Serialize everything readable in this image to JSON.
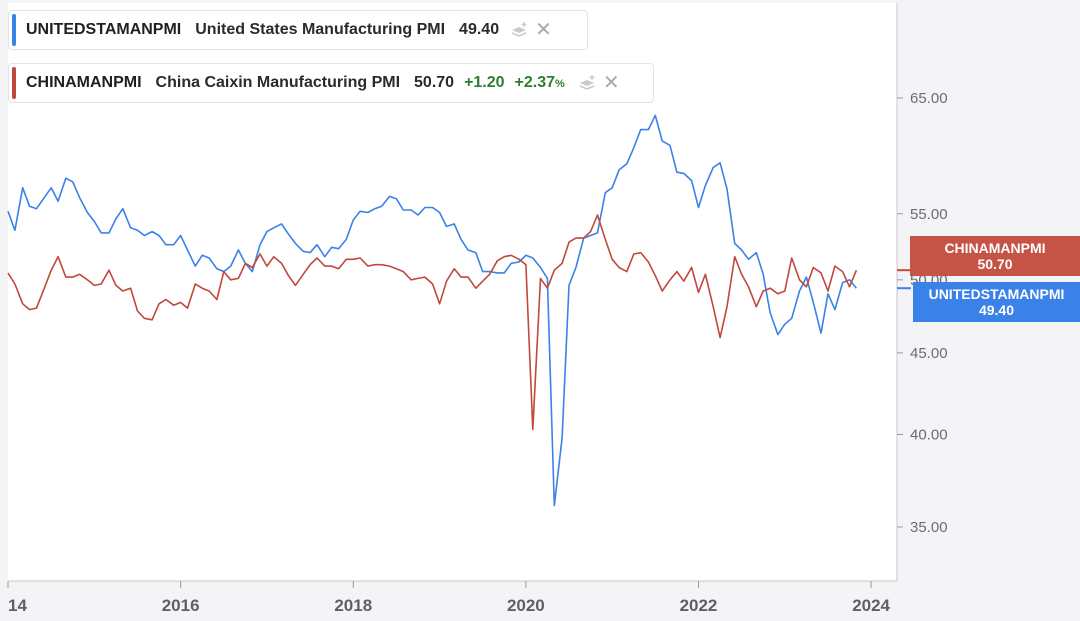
{
  "legend": [
    {
      "symbol": "UNITEDSTAMANPMI",
      "name": "United States Manufacturing PMI",
      "value": "49.40",
      "change": "",
      "change_pct": "",
      "color": "#3b82e8"
    },
    {
      "symbol": "CHINAMANPMI",
      "name": "China Caixin Manufacturing PMI",
      "value": "50.70",
      "change": "+1.20",
      "change_pct": "+2.37",
      "pct_suffix": "%",
      "color": "#c0483c"
    }
  ],
  "price_tags": {
    "china": {
      "label": "CHINAMANPMI",
      "value": "50.70",
      "color": "#c65446"
    },
    "us": {
      "label": "UNITEDSTAMANPMI",
      "value": "49.40",
      "color": "#3b82e8"
    }
  },
  "chart_data": {
    "type": "line",
    "title": "",
    "xlabel": "",
    "ylabel": "",
    "x_tick_labels": [
      "14",
      "2016",
      "2018",
      "2020",
      "2022",
      "2024"
    ],
    "x_tick_years": [
      2014.0,
      2016.0,
      2018.0,
      2020.0,
      2022.0,
      2024.0
    ],
    "y_tick_labels": [
      "65.00",
      "55.00",
      "50.00",
      "45.00",
      "40.00",
      "35.00"
    ],
    "y_ticks": [
      65,
      55,
      50,
      45,
      40,
      35
    ],
    "xlim": [
      2014.0,
      2024.3
    ],
    "ylim": [
      32,
      72
    ],
    "y_scale": "log",
    "grid": false,
    "series": [
      {
        "name": "UNITEDSTAMANPMI",
        "color": "#3b82e8",
        "points": [
          [
            2014.0,
            55.2
          ],
          [
            2014.08,
            53.7
          ],
          [
            2014.17,
            57.1
          ],
          [
            2014.25,
            55.6
          ],
          [
            2014.33,
            55.4
          ],
          [
            2014.42,
            56.3
          ],
          [
            2014.5,
            57.1
          ],
          [
            2014.58,
            56.0
          ],
          [
            2014.67,
            57.9
          ],
          [
            2014.75,
            57.6
          ],
          [
            2014.83,
            56.3
          ],
          [
            2014.92,
            55.1
          ],
          [
            2015.0,
            54.4
          ],
          [
            2015.08,
            53.5
          ],
          [
            2015.17,
            53.5
          ],
          [
            2015.25,
            54.6
          ],
          [
            2015.33,
            55.4
          ],
          [
            2015.42,
            53.9
          ],
          [
            2015.5,
            53.7
          ],
          [
            2015.58,
            53.3
          ],
          [
            2015.67,
            53.6
          ],
          [
            2015.75,
            53.3
          ],
          [
            2015.83,
            52.6
          ],
          [
            2015.92,
            52.6
          ],
          [
            2016.0,
            53.3
          ],
          [
            2016.08,
            52.2
          ],
          [
            2016.17,
            51.0
          ],
          [
            2016.25,
            51.8
          ],
          [
            2016.33,
            51.6
          ],
          [
            2016.42,
            50.8
          ],
          [
            2016.5,
            50.6
          ],
          [
            2016.58,
            51.0
          ],
          [
            2016.67,
            52.2
          ],
          [
            2016.75,
            51.2
          ],
          [
            2016.83,
            50.6
          ],
          [
            2016.92,
            52.6
          ],
          [
            2017.0,
            53.6
          ],
          [
            2017.08,
            53.9
          ],
          [
            2017.17,
            54.2
          ],
          [
            2017.25,
            53.4
          ],
          [
            2017.33,
            52.7
          ],
          [
            2017.42,
            52.1
          ],
          [
            2017.5,
            52.0
          ],
          [
            2017.58,
            52.6
          ],
          [
            2017.67,
            51.7
          ],
          [
            2017.75,
            52.4
          ],
          [
            2017.83,
            52.3
          ],
          [
            2017.92,
            53.0
          ],
          [
            2018.0,
            54.5
          ],
          [
            2018.08,
            55.2
          ],
          [
            2018.17,
            55.1
          ],
          [
            2018.25,
            55.4
          ],
          [
            2018.33,
            55.6
          ],
          [
            2018.42,
            56.4
          ],
          [
            2018.5,
            56.2
          ],
          [
            2018.58,
            55.3
          ],
          [
            2018.67,
            55.3
          ],
          [
            2018.75,
            54.9
          ],
          [
            2018.83,
            55.5
          ],
          [
            2018.92,
            55.5
          ],
          [
            2019.0,
            55.1
          ],
          [
            2019.08,
            54.0
          ],
          [
            2019.17,
            54.2
          ],
          [
            2019.25,
            53.0
          ],
          [
            2019.33,
            52.2
          ],
          [
            2019.42,
            52.0
          ],
          [
            2019.5,
            50.6
          ],
          [
            2019.58,
            50.6
          ],
          [
            2019.67,
            50.5
          ],
          [
            2019.75,
            50.5
          ],
          [
            2019.83,
            51.2
          ],
          [
            2019.92,
            51.3
          ],
          [
            2020.0,
            51.8
          ],
          [
            2020.08,
            51.6
          ],
          [
            2020.17,
            50.9
          ],
          [
            2020.25,
            50.1
          ],
          [
            2020.33,
            36.1
          ],
          [
            2020.42,
            39.8
          ],
          [
            2020.5,
            49.6
          ],
          [
            2020.58,
            50.9
          ],
          [
            2020.67,
            53.1
          ],
          [
            2020.75,
            53.3
          ],
          [
            2020.83,
            53.5
          ],
          [
            2020.92,
            56.7
          ],
          [
            2021.0,
            57.1
          ],
          [
            2021.08,
            58.6
          ],
          [
            2021.17,
            59.1
          ],
          [
            2021.25,
            60.5
          ],
          [
            2021.33,
            62.1
          ],
          [
            2021.42,
            62.1
          ],
          [
            2021.5,
            63.4
          ],
          [
            2021.58,
            61.1
          ],
          [
            2021.67,
            60.7
          ],
          [
            2021.75,
            58.4
          ],
          [
            2021.83,
            58.3
          ],
          [
            2021.92,
            57.7
          ],
          [
            2022.0,
            55.5
          ],
          [
            2022.08,
            57.3
          ],
          [
            2022.17,
            58.8
          ],
          [
            2022.25,
            59.2
          ],
          [
            2022.33,
            57.0
          ],
          [
            2022.42,
            52.7
          ],
          [
            2022.5,
            52.2
          ],
          [
            2022.58,
            51.5
          ],
          [
            2022.67,
            52.0
          ],
          [
            2022.75,
            50.4
          ],
          [
            2022.83,
            47.7
          ],
          [
            2022.92,
            46.2
          ],
          [
            2023.0,
            46.9
          ],
          [
            2023.08,
            47.3
          ],
          [
            2023.17,
            49.2
          ],
          [
            2023.25,
            50.2
          ],
          [
            2023.33,
            48.4
          ],
          [
            2023.42,
            46.3
          ],
          [
            2023.5,
            49.0
          ],
          [
            2023.58,
            47.9
          ],
          [
            2023.67,
            49.8
          ],
          [
            2023.75,
            50.0
          ],
          [
            2023.83,
            49.4
          ]
        ]
      },
      {
        "name": "CHINAMANPMI",
        "color": "#c0483c",
        "points": [
          [
            2014.0,
            50.5
          ],
          [
            2014.08,
            49.7
          ],
          [
            2014.17,
            48.3
          ],
          [
            2014.25,
            47.9
          ],
          [
            2014.33,
            48.0
          ],
          [
            2014.42,
            49.4
          ],
          [
            2014.5,
            50.7
          ],
          [
            2014.58,
            51.7
          ],
          [
            2014.67,
            50.2
          ],
          [
            2014.75,
            50.2
          ],
          [
            2014.83,
            50.4
          ],
          [
            2014.92,
            50.0
          ],
          [
            2015.0,
            49.6
          ],
          [
            2015.08,
            49.7
          ],
          [
            2015.17,
            50.7
          ],
          [
            2015.25,
            49.6
          ],
          [
            2015.33,
            49.2
          ],
          [
            2015.42,
            49.4
          ],
          [
            2015.5,
            47.8
          ],
          [
            2015.58,
            47.3
          ],
          [
            2015.67,
            47.2
          ],
          [
            2015.75,
            48.3
          ],
          [
            2015.83,
            48.6
          ],
          [
            2015.92,
            48.2
          ],
          [
            2016.0,
            48.4
          ],
          [
            2016.08,
            48.0
          ],
          [
            2016.17,
            49.7
          ],
          [
            2016.25,
            49.4
          ],
          [
            2016.33,
            49.2
          ],
          [
            2016.42,
            48.6
          ],
          [
            2016.5,
            50.6
          ],
          [
            2016.58,
            50.0
          ],
          [
            2016.67,
            50.1
          ],
          [
            2016.75,
            51.2
          ],
          [
            2016.83,
            50.9
          ],
          [
            2016.92,
            51.9
          ],
          [
            2017.0,
            51.0
          ],
          [
            2017.08,
            51.7
          ],
          [
            2017.17,
            51.2
          ],
          [
            2017.25,
            50.3
          ],
          [
            2017.33,
            49.6
          ],
          [
            2017.42,
            50.4
          ],
          [
            2017.5,
            51.1
          ],
          [
            2017.58,
            51.6
          ],
          [
            2017.67,
            51.0
          ],
          [
            2017.75,
            51.0
          ],
          [
            2017.83,
            50.8
          ],
          [
            2017.92,
            51.5
          ],
          [
            2018.0,
            51.5
          ],
          [
            2018.08,
            51.6
          ],
          [
            2018.17,
            51.0
          ],
          [
            2018.25,
            51.1
          ],
          [
            2018.33,
            51.1
          ],
          [
            2018.42,
            51.0
          ],
          [
            2018.5,
            50.8
          ],
          [
            2018.58,
            50.6
          ],
          [
            2018.67,
            50.0
          ],
          [
            2018.75,
            50.1
          ],
          [
            2018.83,
            50.2
          ],
          [
            2018.92,
            49.7
          ],
          [
            2019.0,
            48.3
          ],
          [
            2019.08,
            49.9
          ],
          [
            2019.17,
            50.8
          ],
          [
            2019.25,
            50.2
          ],
          [
            2019.33,
            50.2
          ],
          [
            2019.42,
            49.4
          ],
          [
            2019.5,
            49.9
          ],
          [
            2019.58,
            50.4
          ],
          [
            2019.67,
            51.4
          ],
          [
            2019.75,
            51.7
          ],
          [
            2019.83,
            51.8
          ],
          [
            2019.92,
            51.5
          ],
          [
            2020.0,
            51.1
          ],
          [
            2020.08,
            40.3
          ],
          [
            2020.17,
            50.1
          ],
          [
            2020.25,
            49.4
          ],
          [
            2020.33,
            50.7
          ],
          [
            2020.42,
            51.2
          ],
          [
            2020.5,
            52.8
          ],
          [
            2020.58,
            53.1
          ],
          [
            2020.67,
            53.1
          ],
          [
            2020.75,
            53.6
          ],
          [
            2020.83,
            54.9
          ],
          [
            2020.92,
            53.0
          ],
          [
            2021.0,
            51.5
          ],
          [
            2021.08,
            50.9
          ],
          [
            2021.17,
            50.6
          ],
          [
            2021.25,
            51.9
          ],
          [
            2021.33,
            52.0
          ],
          [
            2021.42,
            51.3
          ],
          [
            2021.5,
            50.3
          ],
          [
            2021.58,
            49.2
          ],
          [
            2021.67,
            50.0
          ],
          [
            2021.75,
            50.6
          ],
          [
            2021.83,
            49.9
          ],
          [
            2021.92,
            50.9
          ],
          [
            2022.0,
            49.1
          ],
          [
            2022.08,
            50.4
          ],
          [
            2022.17,
            48.1
          ],
          [
            2022.25,
            46.0
          ],
          [
            2022.33,
            48.1
          ],
          [
            2022.42,
            51.7
          ],
          [
            2022.5,
            50.4
          ],
          [
            2022.58,
            49.5
          ],
          [
            2022.67,
            48.1
          ],
          [
            2022.75,
            49.2
          ],
          [
            2022.83,
            49.4
          ],
          [
            2022.92,
            49.0
          ],
          [
            2023.0,
            49.2
          ],
          [
            2023.08,
            51.6
          ],
          [
            2023.17,
            50.0
          ],
          [
            2023.25,
            49.5
          ],
          [
            2023.33,
            50.9
          ],
          [
            2023.42,
            50.5
          ],
          [
            2023.5,
            49.2
          ],
          [
            2023.58,
            51.0
          ],
          [
            2023.67,
            50.6
          ],
          [
            2023.75,
            49.5
          ],
          [
            2023.83,
            50.7
          ]
        ]
      }
    ]
  }
}
